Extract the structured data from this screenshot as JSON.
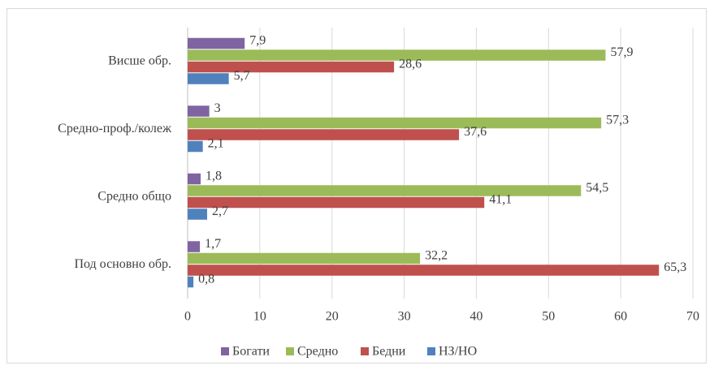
{
  "chart_data": {
    "type": "bar",
    "orientation": "horizontal",
    "categories": [
      "Висше обр.",
      "Средно-проф./колеж",
      "Средно общо",
      "Под основно обр."
    ],
    "series": [
      {
        "name": "Богати",
        "color": "#8064a2",
        "values": [
          7.9,
          3,
          1.8,
          1.7
        ],
        "value_labels": [
          "7,9",
          "3",
          "1,8",
          "1,7"
        ]
      },
      {
        "name": "Средно",
        "color": "#9bbb59",
        "values": [
          57.9,
          57.3,
          54.5,
          32.2
        ],
        "value_labels": [
          "57,9",
          "57,3",
          "54,5",
          "32,2"
        ]
      },
      {
        "name": "Бедни",
        "color": "#c0504d",
        "values": [
          28.6,
          37.6,
          41.1,
          65.3
        ],
        "value_labels": [
          "28,6",
          "37,6",
          "41,1",
          "65,3"
        ]
      },
      {
        "name": "НЗ/НО",
        "color": "#4f81bd",
        "values": [
          5.7,
          2.1,
          2.7,
          0.8
        ],
        "value_labels": [
          "5,7",
          "2,1",
          "2,7",
          "0,8"
        ]
      }
    ],
    "xlim": [
      0,
      70
    ],
    "xticks": [
      0,
      10,
      20,
      30,
      40,
      50,
      60,
      70
    ],
    "grid": true,
    "legend": "bottom"
  }
}
